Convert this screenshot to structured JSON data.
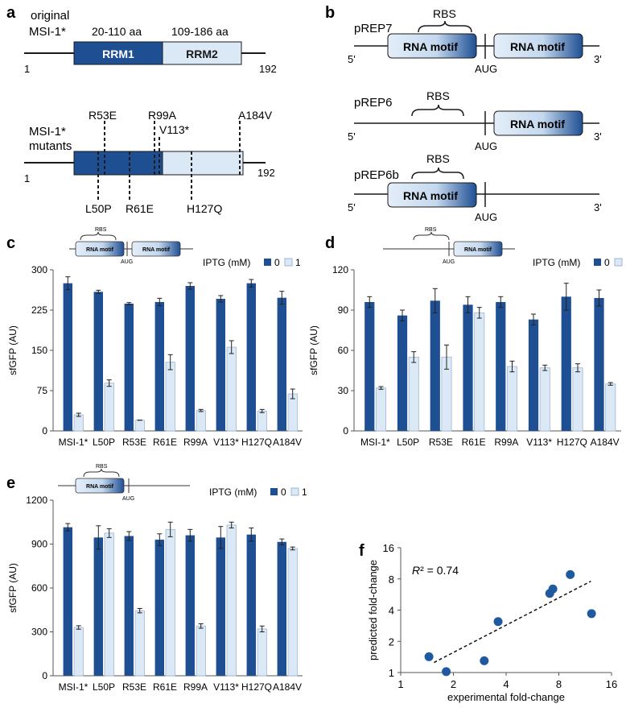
{
  "colors": {
    "dark": "#1f4f93",
    "light": "#dbe8f6",
    "stroke": "#1a1a1a",
    "dot": "#1f5aa0"
  },
  "panel_a": {
    "letter": "a",
    "top_label_line1": "original",
    "top_label_line2": "MSI-1*",
    "range1": "20-110 aa",
    "range2": "109-186 aa",
    "domain1": "RRM1",
    "domain2": "RRM2",
    "start": "1",
    "end": "192",
    "mutants_label_line1": "MSI-1*",
    "mutants_label_line2": "mutants",
    "mut_start": "1",
    "mut_end": "192",
    "mutations_top": [
      "R53E",
      "R99A",
      "V113*",
      "A184V"
    ],
    "mutations_bottom": [
      "L50P",
      "R61E",
      "H127Q"
    ]
  },
  "panel_b": {
    "letter": "b",
    "constructs": [
      {
        "name": "pREP7",
        "rbs": "RBS",
        "motif1": "RNA motif",
        "motif2": "RNA motif",
        "aug": "AUG",
        "five": "5'",
        "three": "3'"
      },
      {
        "name": "pREP6",
        "rbs": "RBS",
        "motif2": "RNA motif",
        "aug": "AUG",
        "five": "5'",
        "three": "3'"
      },
      {
        "name": "pREP6b",
        "rbs": "RBS",
        "motif1": "RNA motif",
        "aug": "AUG",
        "five": "5'",
        "three": "3'"
      }
    ]
  },
  "inset_labels": {
    "rbs": "RBS",
    "motif": "RNA motif",
    "aug": "AUG"
  },
  "legend": {
    "title": "IPTG (mM)",
    "zero": "0",
    "one": "1"
  },
  "panel_f": {
    "letter": "f",
    "r2_prefix": "R",
    "r2_value": "² = 0.74"
  },
  "chart_data": [
    {
      "panel": "c",
      "type": "bar",
      "construct": "pREP7",
      "categories": [
        "MSI-1*",
        "L50P",
        "R53E",
        "R61E",
        "R99A",
        "V113*",
        "H127Q",
        "A184V"
      ],
      "series": [
        {
          "name": "0",
          "values": [
            275,
            259,
            237,
            240,
            270,
            246,
            275,
            248
          ],
          "errors": [
            12,
            3,
            2,
            7,
            6,
            6,
            7,
            12
          ]
        },
        {
          "name": "1",
          "values": [
            30,
            89,
            20,
            128,
            38,
            156,
            37,
            69
          ],
          "errors": [
            3,
            6,
            0,
            14,
            2,
            12,
            3,
            9
          ]
        }
      ],
      "xlabel": "",
      "ylabel": "sfGFP (AU)",
      "ylim": [
        0,
        300
      ],
      "yticks": [
        "0",
        "75",
        "150",
        "225",
        "300"
      ],
      "legend_title": "IPTG (mM)"
    },
    {
      "panel": "d",
      "type": "bar",
      "construct": "pREP6",
      "categories": [
        "MSI-1*",
        "L50P",
        "R53E",
        "R61E",
        "R99A",
        "V113*",
        "H127Q",
        "A184V"
      ],
      "series": [
        {
          "name": "0",
          "values": [
            96,
            86,
            97,
            94,
            96,
            83,
            100,
            99
          ],
          "errors": [
            4,
            4,
            9,
            6,
            4,
            4,
            10,
            6
          ]
        },
        {
          "name": "1",
          "values": [
            32,
            55,
            55,
            88,
            48,
            47,
            47,
            35
          ],
          "errors": [
            1,
            4,
            9,
            4,
            4,
            2,
            3,
            1
          ]
        }
      ],
      "xlabel": "",
      "ylabel": "sfGFP (AU)",
      "ylim": [
        0,
        120
      ],
      "yticks": [
        "0",
        "30",
        "60",
        "90",
        "120"
      ],
      "legend_title": "IPTG (mM)"
    },
    {
      "panel": "e",
      "type": "bar",
      "construct": "pREP6b",
      "categories": [
        "MSI-1*",
        "L50P",
        "R53E",
        "R61E",
        "R99A",
        "V113*",
        "H127Q",
        "A184V"
      ],
      "series": [
        {
          "name": "0",
          "values": [
            1015,
            945,
            955,
            930,
            960,
            945,
            965,
            915
          ],
          "errors": [
            25,
            80,
            30,
            40,
            40,
            75,
            45,
            20
          ]
        },
        {
          "name": "1",
          "values": [
            330,
            975,
            445,
            1000,
            340,
            1030,
            320,
            870
          ],
          "errors": [
            12,
            30,
            15,
            50,
            15,
            20,
            20,
            10
          ]
        }
      ],
      "xlabel": "",
      "ylabel": "sfGFP (AU)",
      "ylim": [
        0,
        1200
      ],
      "yticks": [
        "0",
        "300",
        "600",
        "900",
        "1200"
      ],
      "legend_title": "IPTG (mM)"
    },
    {
      "panel": "f",
      "type": "scatter",
      "x": [
        1.45,
        1.82,
        3.0,
        3.6,
        7.1,
        7.4,
        9.3,
        12.3
      ],
      "y": [
        1.42,
        1.02,
        1.3,
        3.1,
        5.8,
        6.4,
        8.8,
        3.7
      ],
      "xscale": "log2",
      "yscale": "log2",
      "xlim": [
        1,
        16
      ],
      "ylim": [
        1,
        16
      ],
      "xticks": [
        "1",
        "2",
        "4",
        "8",
        "16"
      ],
      "yticks": [
        "1",
        "2",
        "4",
        "8",
        "16"
      ],
      "trendline": {
        "x": [
          1.55,
          12.2
        ],
        "y": [
          1.25,
          7.6
        ]
      },
      "xlabel": "experimental fold-change",
      "ylabel": "predicted fold-change",
      "r_squared": 0.74
    }
  ]
}
